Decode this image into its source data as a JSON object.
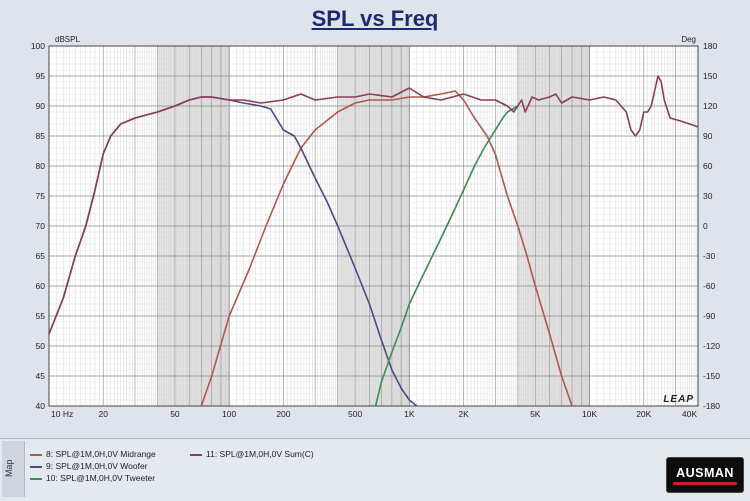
{
  "title": "SPL vs Freq",
  "chart_data": {
    "type": "line",
    "title": "SPL vs Freq",
    "xlabel": "",
    "ylabel": "dBSPL",
    "y2label": "Deg",
    "x_scale": "log",
    "xlim": [
      10,
      40000
    ],
    "ylim": [
      40,
      100
    ],
    "y2lim": [
      -180,
      180
    ],
    "grid": true,
    "x_ticks": [
      {
        "value": 10,
        "label": "10 Hz"
      },
      {
        "value": 20,
        "label": "20"
      },
      {
        "value": 50,
        "label": "50"
      },
      {
        "value": 100,
        "label": "100"
      },
      {
        "value": 200,
        "label": "200"
      },
      {
        "value": 500,
        "label": "500"
      },
      {
        "value": 1000,
        "label": "1K"
      },
      {
        "value": 2000,
        "label": "2K"
      },
      {
        "value": 5000,
        "label": "5K"
      },
      {
        "value": 10000,
        "label": "10K"
      },
      {
        "value": 20000,
        "label": "20K"
      },
      {
        "value": 40000,
        "label": "40K"
      }
    ],
    "y_ticks": [
      40,
      45,
      50,
      55,
      60,
      65,
      70,
      75,
      80,
      85,
      90,
      95,
      100
    ],
    "y2_ticks": [
      -180,
      -150,
      -120,
      -90,
      -60,
      -30,
      0,
      30,
      60,
      90,
      120,
      150,
      180
    ],
    "watermark": "LEAP",
    "series": [
      {
        "name": "8: SPL@1M,0H,0V Midrange",
        "color": "#b0584a",
        "points": [
          [
            70,
            40
          ],
          [
            80,
            45
          ],
          [
            100,
            55
          ],
          [
            130,
            63
          ],
          [
            160,
            70
          ],
          [
            200,
            77
          ],
          [
            250,
            83
          ],
          [
            300,
            86
          ],
          [
            400,
            89
          ],
          [
            500,
            90.5
          ],
          [
            600,
            91
          ],
          [
            800,
            91
          ],
          [
            1000,
            91.5
          ],
          [
            1200,
            91.5
          ],
          [
            1500,
            92
          ],
          [
            1800,
            92.5
          ],
          [
            2000,
            91
          ],
          [
            2300,
            88
          ],
          [
            2700,
            85
          ],
          [
            3000,
            82
          ],
          [
            3500,
            75
          ],
          [
            4000,
            70
          ],
          [
            4500,
            65
          ],
          [
            5000,
            60
          ],
          [
            6000,
            52
          ],
          [
            7000,
            45
          ],
          [
            8000,
            40
          ]
        ]
      },
      {
        "name": "9: SPL@1M,0H,0V Woofer",
        "color": "#4b4a86",
        "points": [
          [
            10,
            52
          ],
          [
            12,
            58
          ],
          [
            14,
            65
          ],
          [
            16,
            70
          ],
          [
            18,
            76
          ],
          [
            20,
            82
          ],
          [
            22,
            85
          ],
          [
            25,
            87
          ],
          [
            30,
            88
          ],
          [
            40,
            89
          ],
          [
            50,
            90
          ],
          [
            60,
            91
          ],
          [
            70,
            91.5
          ],
          [
            80,
            91.5
          ],
          [
            100,
            91
          ],
          [
            120,
            90.5
          ],
          [
            150,
            90
          ],
          [
            170,
            89.5
          ],
          [
            200,
            86
          ],
          [
            230,
            85
          ],
          [
            250,
            83
          ],
          [
            300,
            78
          ],
          [
            350,
            74
          ],
          [
            400,
            70
          ],
          [
            500,
            63
          ],
          [
            600,
            57
          ],
          [
            700,
            51
          ],
          [
            800,
            46
          ],
          [
            900,
            43
          ],
          [
            1000,
            41
          ],
          [
            1100,
            40
          ]
        ]
      },
      {
        "name": "10: SPL@1M,0H,0V Tweeter",
        "color": "#3d8a52",
        "points": [
          [
            650,
            40
          ],
          [
            700,
            44
          ],
          [
            800,
            49
          ],
          [
            900,
            53
          ],
          [
            1000,
            57
          ],
          [
            1200,
            62
          ],
          [
            1500,
            68
          ],
          [
            1800,
            73
          ],
          [
            2000,
            76
          ],
          [
            2300,
            80
          ],
          [
            2600,
            83
          ],
          [
            3000,
            86
          ],
          [
            3300,
            88
          ],
          [
            3500,
            89
          ],
          [
            4000,
            90
          ]
        ]
      },
      {
        "name": "11: SPL@1M,0H,0V Sum(C)",
        "color": "#8c3c5a",
        "points": [
          [
            10,
            52
          ],
          [
            12,
            58
          ],
          [
            14,
            65
          ],
          [
            16,
            70
          ],
          [
            18,
            76
          ],
          [
            20,
            82
          ],
          [
            22,
            85
          ],
          [
            25,
            87
          ],
          [
            30,
            88
          ],
          [
            40,
            89
          ],
          [
            50,
            90
          ],
          [
            60,
            91
          ],
          [
            70,
            91.5
          ],
          [
            80,
            91.5
          ],
          [
            100,
            91
          ],
          [
            120,
            91
          ],
          [
            150,
            90.5
          ],
          [
            200,
            91
          ],
          [
            250,
            92
          ],
          [
            300,
            91
          ],
          [
            400,
            91.5
          ],
          [
            500,
            91.5
          ],
          [
            600,
            92
          ],
          [
            800,
            91.5
          ],
          [
            1000,
            93
          ],
          [
            1200,
            91.5
          ],
          [
            1500,
            91
          ],
          [
            2000,
            92
          ],
          [
            2500,
            91
          ],
          [
            3000,
            91
          ],
          [
            3500,
            90
          ],
          [
            3800,
            89
          ],
          [
            4200,
            91
          ],
          [
            4400,
            89
          ],
          [
            4800,
            91.5
          ],
          [
            5200,
            91
          ],
          [
            6000,
            91.5
          ],
          [
            6500,
            92
          ],
          [
            7000,
            90.5
          ],
          [
            8000,
            91.5
          ],
          [
            10000,
            91
          ],
          [
            12000,
            91.5
          ],
          [
            14000,
            91
          ],
          [
            16000,
            89
          ],
          [
            17000,
            86
          ],
          [
            18000,
            85
          ],
          [
            19000,
            86
          ],
          [
            20000,
            89
          ],
          [
            21000,
            89
          ],
          [
            22000,
            90
          ],
          [
            24000,
            95
          ],
          [
            25000,
            94
          ],
          [
            26000,
            91
          ],
          [
            28000,
            88
          ],
          [
            32000,
            87.5
          ],
          [
            36000,
            87
          ],
          [
            40000,
            86.5
          ]
        ]
      }
    ]
  },
  "legend": [
    {
      "label": "8: SPL@1M,0H,0V Midrange",
      "color": "#b0584a"
    },
    {
      "label": "9: SPL@1M,0H,0V Woofer",
      "color": "#4b4a86"
    },
    {
      "label": "10: SPL@1M,0H,0V Tweeter",
      "color": "#3d8a52"
    },
    {
      "label": "11: SPL@1M,0H,0V Sum(C)",
      "color": "#8c3c5a"
    }
  ],
  "map_tab": "Map",
  "logo": "AUSMAN"
}
